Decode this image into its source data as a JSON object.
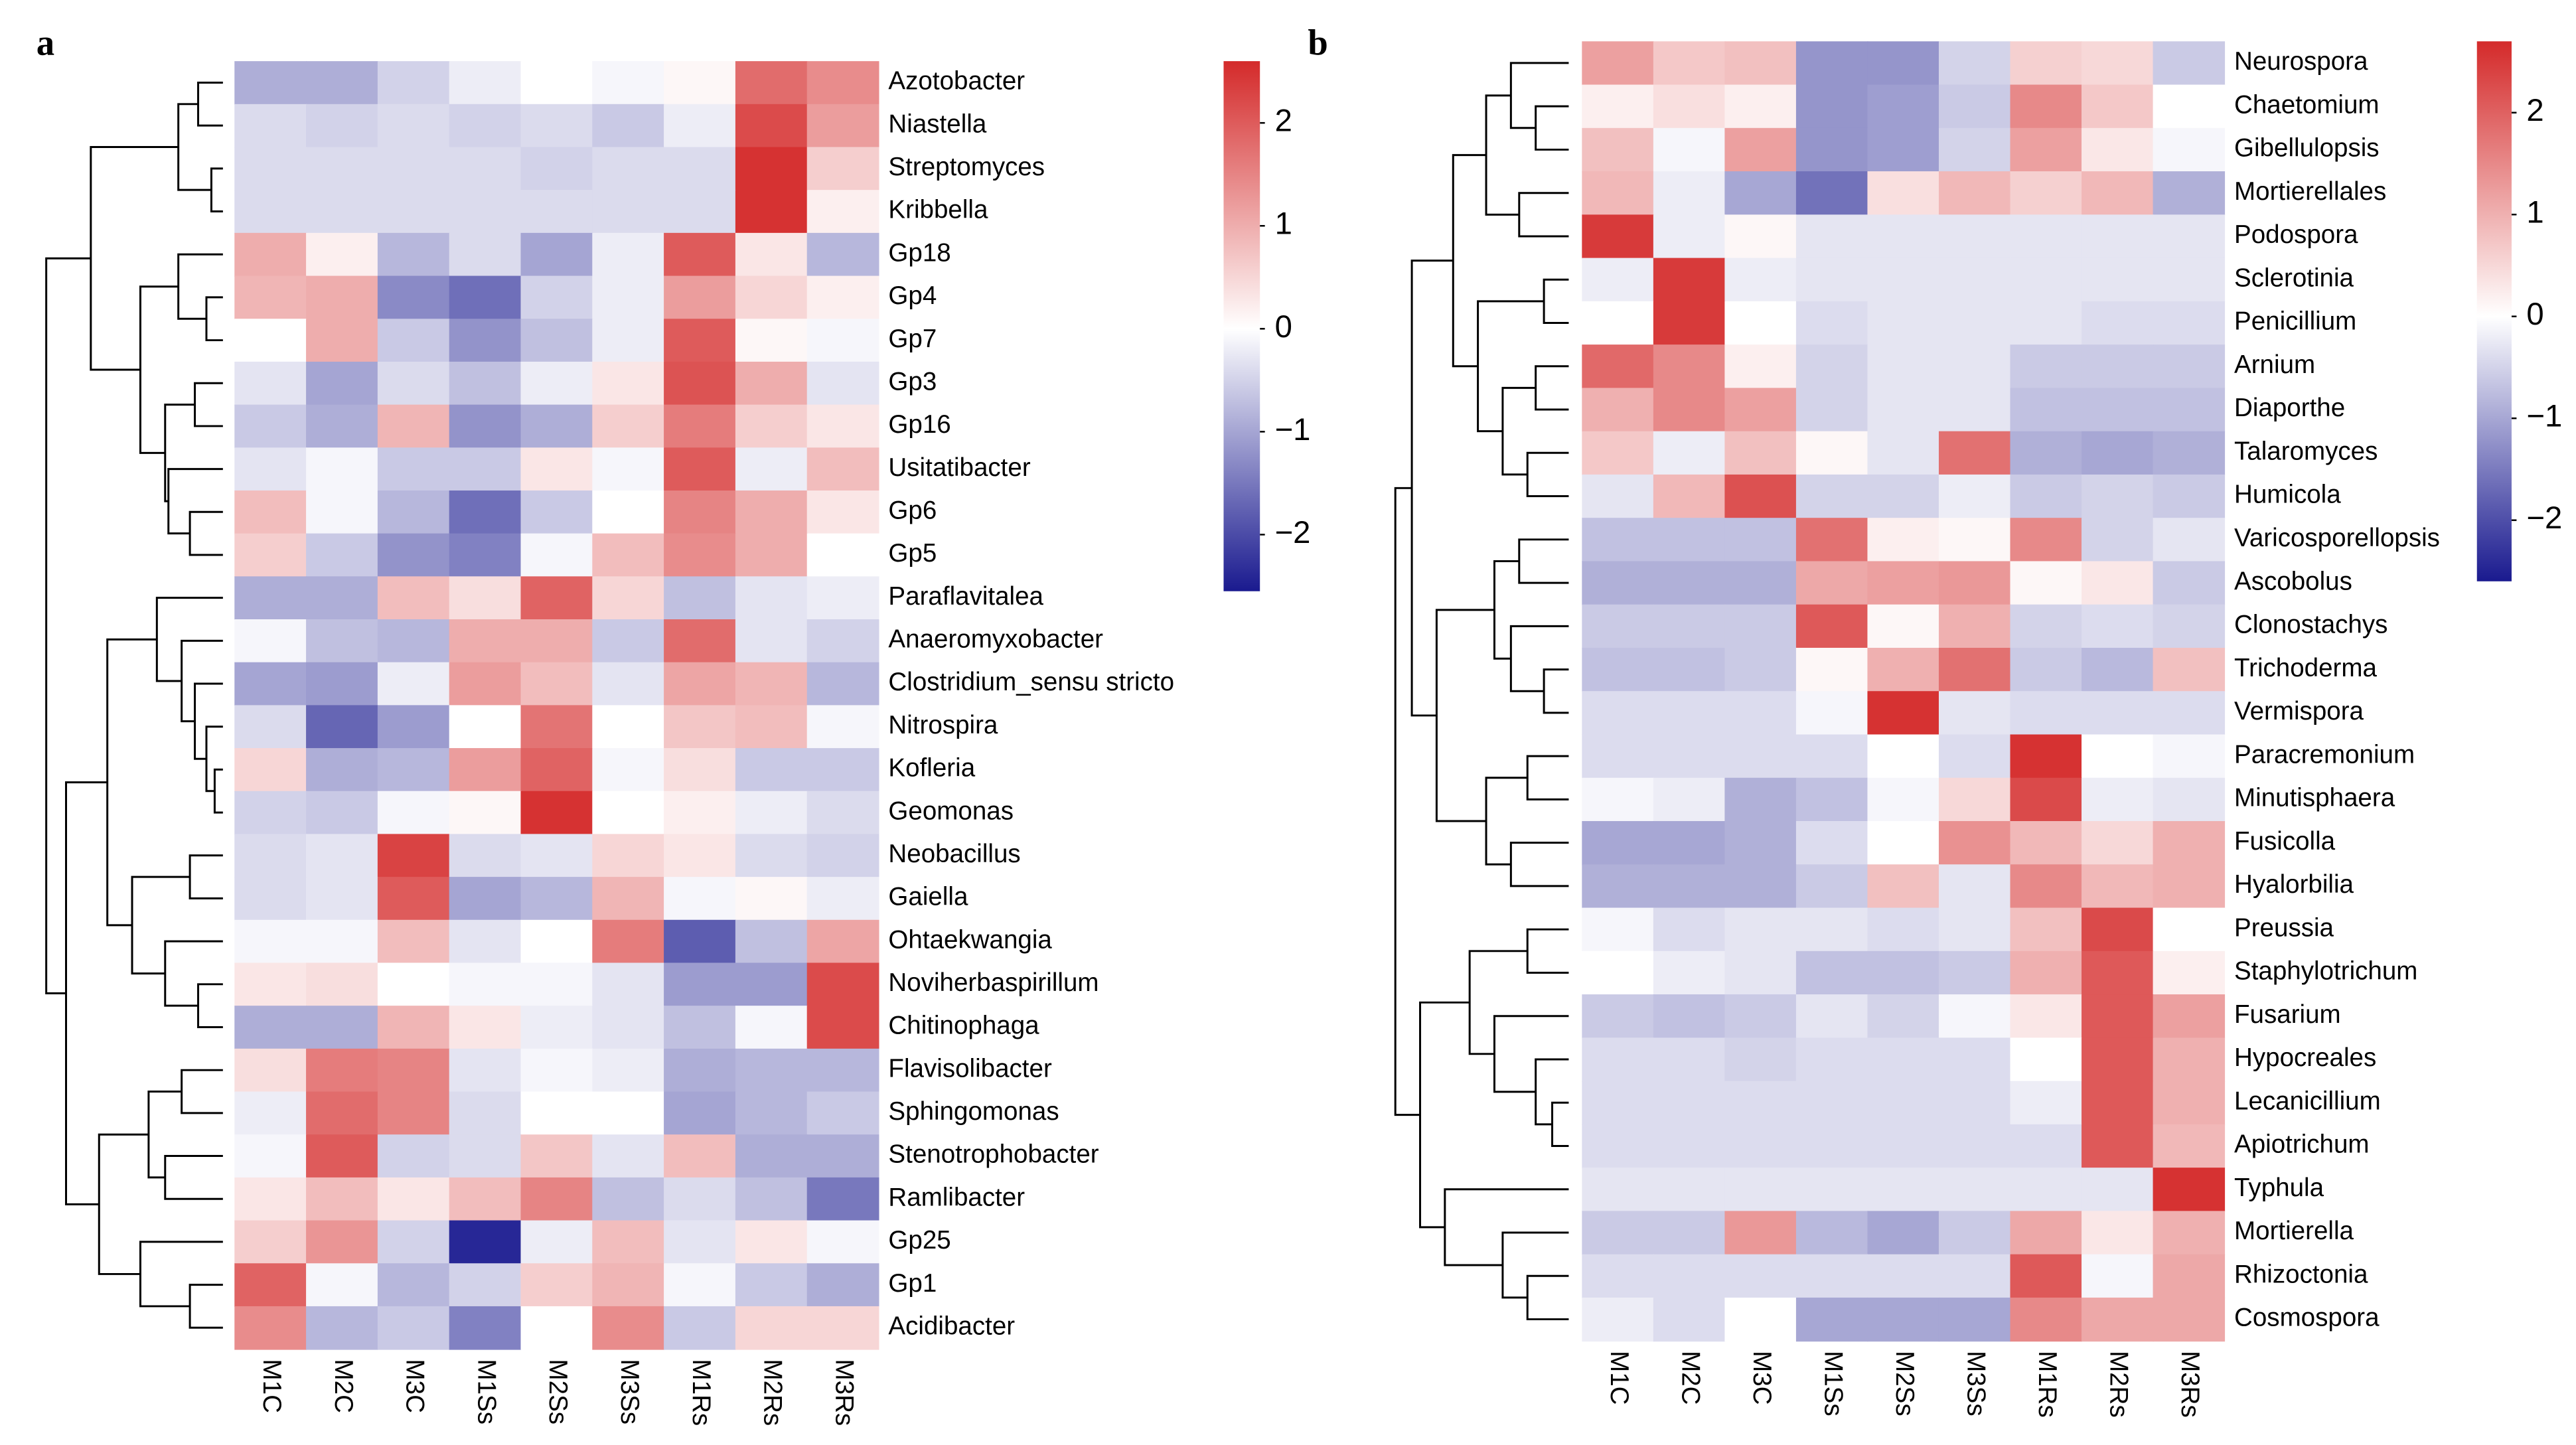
{
  "chart_data": [
    {
      "type": "heatmap",
      "label": "a",
      "rows": [
        "Azotobacter",
        "Niastella",
        "Streptomyces",
        "Kribbella",
        "Gp18",
        "Gp4",
        "Gp7",
        "Gp3",
        "Gp16",
        "Usitatibacter",
        "Gp6",
        "Gp5",
        "Paraflavitalea",
        "Anaeromyxobacter",
        "Clostridium_sensu stricto",
        "Nitrospira",
        "Kofleria",
        "Geomonas",
        "Neobacillus",
        "Gaiella",
        "Ohtaekwangia",
        "Noviherbaspirillum",
        "Chitinophaga",
        "Flavisolibacter",
        "Sphingomonas",
        "Stenotrophobacter",
        "Ramlibacter",
        "Gp25",
        "Gp1",
        "Acidibacter"
      ],
      "columns": [
        "M1C",
        "M2C",
        "M3C",
        "M1Ss",
        "M2Ss",
        "M3Ss",
        "M1Rs",
        "M2Rs",
        "M3Rs"
      ],
      "values": [
        [
          -0.9,
          -0.9,
          -0.5,
          -0.2,
          0,
          -0.1,
          0.1,
          1.8,
          1.4
        ],
        [
          -0.4,
          -0.5,
          -0.4,
          -0.5,
          -0.4,
          -0.6,
          -0.2,
          2.2,
          1.2
        ],
        [
          -0.4,
          -0.4,
          -0.4,
          -0.4,
          -0.5,
          -0.4,
          -0.4,
          2.5,
          0.6
        ],
        [
          -0.4,
          -0.4,
          -0.4,
          -0.4,
          -0.4,
          -0.4,
          -0.4,
          2.5,
          0.2
        ],
        [
          1.0,
          0.2,
          -0.8,
          -0.4,
          -1.0,
          -0.2,
          2.0,
          0.3,
          -0.8
        ],
        [
          0.9,
          1.0,
          -1.3,
          -1.6,
          -0.5,
          -0.2,
          1.2,
          0.5,
          0.2
        ],
        [
          0,
          1.0,
          -0.6,
          -1.2,
          -0.7,
          -0.2,
          2.0,
          0.1,
          -0.1
        ],
        [
          -0.3,
          -1.0,
          -0.4,
          -0.7,
          -0.2,
          0.3,
          2.1,
          1.0,
          -0.3
        ],
        [
          -0.6,
          -0.9,
          0.9,
          -1.2,
          -0.9,
          0.6,
          1.6,
          0.6,
          0.3
        ],
        [
          -0.3,
          -0.1,
          -0.6,
          -0.6,
          0.3,
          -0.1,
          2.0,
          -0.2,
          0.8
        ],
        [
          0.8,
          -0.1,
          -0.8,
          -1.6,
          -0.6,
          0,
          1.5,
          1.0,
          0.3
        ],
        [
          0.6,
          -0.6,
          -1.2,
          -1.4,
          -0.1,
          0.8,
          1.4,
          1.0,
          0
        ],
        [
          -0.9,
          -0.9,
          0.8,
          0.4,
          1.9,
          0.5,
          -0.7,
          -0.3,
          -0.2
        ],
        [
          -0.1,
          -0.7,
          -0.8,
          1.0,
          1.0,
          -0.6,
          1.8,
          -0.3,
          -0.5
        ],
        [
          -1.0,
          -1.1,
          -0.2,
          1.2,
          0.8,
          -0.3,
          1.1,
          0.9,
          -0.8
        ],
        [
          -0.4,
          -1.7,
          -1.1,
          0,
          1.7,
          0,
          0.7,
          0.8,
          -0.1
        ],
        [
          0.5,
          -0.9,
          -0.8,
          1.2,
          1.9,
          -0.1,
          0.4,
          -0.6,
          -0.6
        ],
        [
          -0.5,
          -0.6,
          -0.1,
          0.1,
          2.5,
          0,
          0.2,
          -0.2,
          -0.4
        ],
        [
          -0.4,
          -0.3,
          2.3,
          -0.4,
          -0.3,
          0.5,
          0.3,
          -0.4,
          -0.5
        ],
        [
          -0.4,
          -0.3,
          2.0,
          -1.0,
          -0.8,
          0.9,
          -0.1,
          0.1,
          -0.2
        ],
        [
          -0.1,
          -0.1,
          0.8,
          -0.3,
          0,
          1.6,
          -1.8,
          -0.7,
          1.1
        ],
        [
          0.3,
          0.4,
          0,
          -0.1,
          -0.1,
          -0.3,
          -1.1,
          -1.1,
          2.2
        ],
        [
          -0.9,
          -0.9,
          0.9,
          0.3,
          -0.2,
          -0.3,
          -0.7,
          -0.1,
          2.2
        ],
        [
          0.4,
          1.6,
          1.5,
          -0.3,
          -0.1,
          -0.2,
          -0.9,
          -0.8,
          -0.8
        ],
        [
          -0.2,
          1.8,
          1.5,
          -0.4,
          0,
          0,
          -1.0,
          -0.8,
          -0.6
        ],
        [
          -0.1,
          2.0,
          -0.5,
          -0.4,
          0.7,
          -0.3,
          0.8,
          -0.9,
          -0.9
        ],
        [
          0.3,
          0.8,
          0.3,
          0.8,
          1.5,
          -0.7,
          -0.4,
          -0.7,
          -1.5
        ],
        [
          0.6,
          1.3,
          -0.5,
          -2.4,
          -0.2,
          0.8,
          -0.3,
          0.3,
          -0.1
        ],
        [
          1.9,
          -0.1,
          -0.8,
          -0.5,
          0.6,
          0.9,
          -0.1,
          -0.6,
          -0.9
        ],
        [
          1.4,
          -0.8,
          -0.6,
          -1.4,
          0,
          1.4,
          -0.6,
          0.5,
          0.5
        ]
      ],
      "zlim": [
        -2.55,
        2.6
      ],
      "zticks": [
        2,
        1,
        0,
        {
          "value": -1,
          "label": "−1"
        },
        {
          "value": -2,
          "label": "−2"
        }
      ],
      "colors": [
        "#1a1a8f",
        "#ffffff",
        "#d42a2a"
      ]
    },
    {
      "type": "heatmap",
      "label": "b",
      "rows": [
        "Neurospora",
        "Chaetomium",
        "Gibellulopsis",
        "Mortierellales",
        "Podospora",
        "Sclerotinia",
        "Penicillium",
        "Arnium",
        "Diaporthe",
        "Talaromyces",
        "Humicola",
        "Varicosporellopsis",
        "Ascobolus",
        "Clonostachys",
        "Trichoderma",
        "Vermispora",
        "Paracremonium",
        "Minutisphaera",
        "Fusicolla",
        "Hyalorbilia",
        "Preussia",
        "Staphylotrichum",
        "Fusarium",
        "Hypocreales",
        "Lecanicillium",
        "Apiotrichum",
        "Typhula",
        "Mortierella",
        "Rhizoctonia",
        "Cosmospora"
      ],
      "columns": [
        "M1C",
        "M2C",
        "M3C",
        "M1Ss",
        "M2Ss",
        "M3Ss",
        "M1Rs",
        "M2Rs",
        "M3Rs"
      ],
      "values": [
        [
          1.2,
          0.7,
          0.8,
          -1.2,
          -1.2,
          -0.5,
          0.6,
          0.5,
          -0.6
        ],
        [
          0.2,
          0.4,
          0.2,
          -1.2,
          -1.1,
          -0.6,
          1.5,
          0.7,
          0
        ],
        [
          0.8,
          -0.1,
          1.2,
          -1.2,
          -1.1,
          -0.5,
          1.2,
          0.3,
          -0.1
        ],
        [
          0.9,
          -0.2,
          -1.0,
          -1.6,
          0.4,
          0.9,
          0.6,
          0.9,
          -0.9
        ],
        [
          2.5,
          -0.2,
          0.1,
          -0.3,
          -0.3,
          -0.3,
          -0.3,
          -0.3,
          -0.3
        ],
        [
          -0.2,
          2.5,
          -0.2,
          -0.3,
          -0.3,
          -0.3,
          -0.3,
          -0.3,
          -0.3
        ],
        [
          0,
          2.5,
          0,
          -0.4,
          -0.3,
          -0.3,
          -0.3,
          -0.4,
          -0.4
        ],
        [
          1.9,
          1.5,
          0.2,
          -0.5,
          -0.3,
          -0.3,
          -0.6,
          -0.6,
          -0.6
        ],
        [
          1.0,
          1.5,
          1.2,
          -0.5,
          -0.3,
          -0.3,
          -0.7,
          -0.7,
          -0.7
        ],
        [
          0.7,
          -0.2,
          0.8,
          0.1,
          -0.3,
          1.8,
          -0.9,
          -1.0,
          -0.9
        ],
        [
          -0.3,
          0.9,
          2.2,
          -0.5,
          -0.5,
          -0.2,
          -0.6,
          -0.5,
          -0.6
        ],
        [
          -0.7,
          -0.7,
          -0.7,
          1.8,
          0.2,
          0.1,
          1.5,
          -0.5,
          -0.3
        ],
        [
          -0.9,
          -0.9,
          -0.9,
          1.1,
          1.2,
          1.3,
          0.1,
          0.3,
          -0.6
        ],
        [
          -0.6,
          -0.6,
          -0.6,
          2.1,
          0.1,
          1.0,
          -0.5,
          -0.4,
          -0.5
        ],
        [
          -0.7,
          -0.7,
          -0.6,
          0.1,
          1.0,
          1.8,
          -0.6,
          -0.8,
          0.8
        ],
        [
          -0.4,
          -0.4,
          -0.4,
          -0.1,
          2.6,
          -0.3,
          -0.4,
          -0.4,
          -0.4
        ],
        [
          -0.4,
          -0.4,
          -0.4,
          -0.4,
          0,
          -0.4,
          2.6,
          0,
          -0.1
        ],
        [
          -0.1,
          -0.2,
          -0.9,
          -0.7,
          -0.1,
          0.5,
          2.3,
          -0.2,
          -0.3
        ],
        [
          -1.0,
          -1.0,
          -0.9,
          -0.4,
          0,
          1.4,
          0.9,
          0.5,
          1.0
        ],
        [
          -0.9,
          -0.9,
          -0.9,
          -0.6,
          0.8,
          -0.3,
          1.5,
          0.9,
          1.0
        ],
        [
          -0.1,
          -0.4,
          -0.3,
          -0.3,
          -0.4,
          -0.3,
          0.8,
          2.3,
          0
        ],
        [
          0,
          -0.2,
          -0.3,
          -0.7,
          -0.7,
          -0.6,
          1.0,
          2.1,
          0.2
        ],
        [
          -0.6,
          -0.7,
          -0.6,
          -0.3,
          -0.5,
          -0.1,
          0.3,
          2.1,
          1.2
        ],
        [
          -0.4,
          -0.4,
          -0.5,
          -0.4,
          -0.4,
          -0.4,
          0,
          2.1,
          1.0
        ],
        [
          -0.4,
          -0.4,
          -0.4,
          -0.4,
          -0.4,
          -0.4,
          -0.2,
          2.1,
          1.0
        ],
        [
          -0.4,
          -0.4,
          -0.4,
          -0.4,
          -0.4,
          -0.4,
          -0.4,
          2.1,
          0.9
        ],
        [
          -0.3,
          -0.3,
          -0.3,
          -0.3,
          -0.3,
          -0.3,
          -0.3,
          -0.3,
          2.6
        ],
        [
          -0.6,
          -0.6,
          1.3,
          -0.8,
          -1.0,
          -0.6,
          1.1,
          0.3,
          1.0
        ],
        [
          -0.4,
          -0.4,
          -0.4,
          -0.4,
          -0.4,
          -0.4,
          2.1,
          -0.1,
          1.1
        ],
        [
          -0.2,
          -0.4,
          0,
          -1.0,
          -1.0,
          -1.0,
          1.5,
          1.1,
          1.1
        ]
      ],
      "zlim": [
        -2.6,
        2.7
      ],
      "zticks": [
        2,
        1,
        0,
        {
          "value": -1,
          "label": "−1"
        },
        {
          "value": -2,
          "label": "−2"
        }
      ],
      "colors": [
        "#1a1a8f",
        "#ffffff",
        "#d42a2a"
      ]
    }
  ]
}
